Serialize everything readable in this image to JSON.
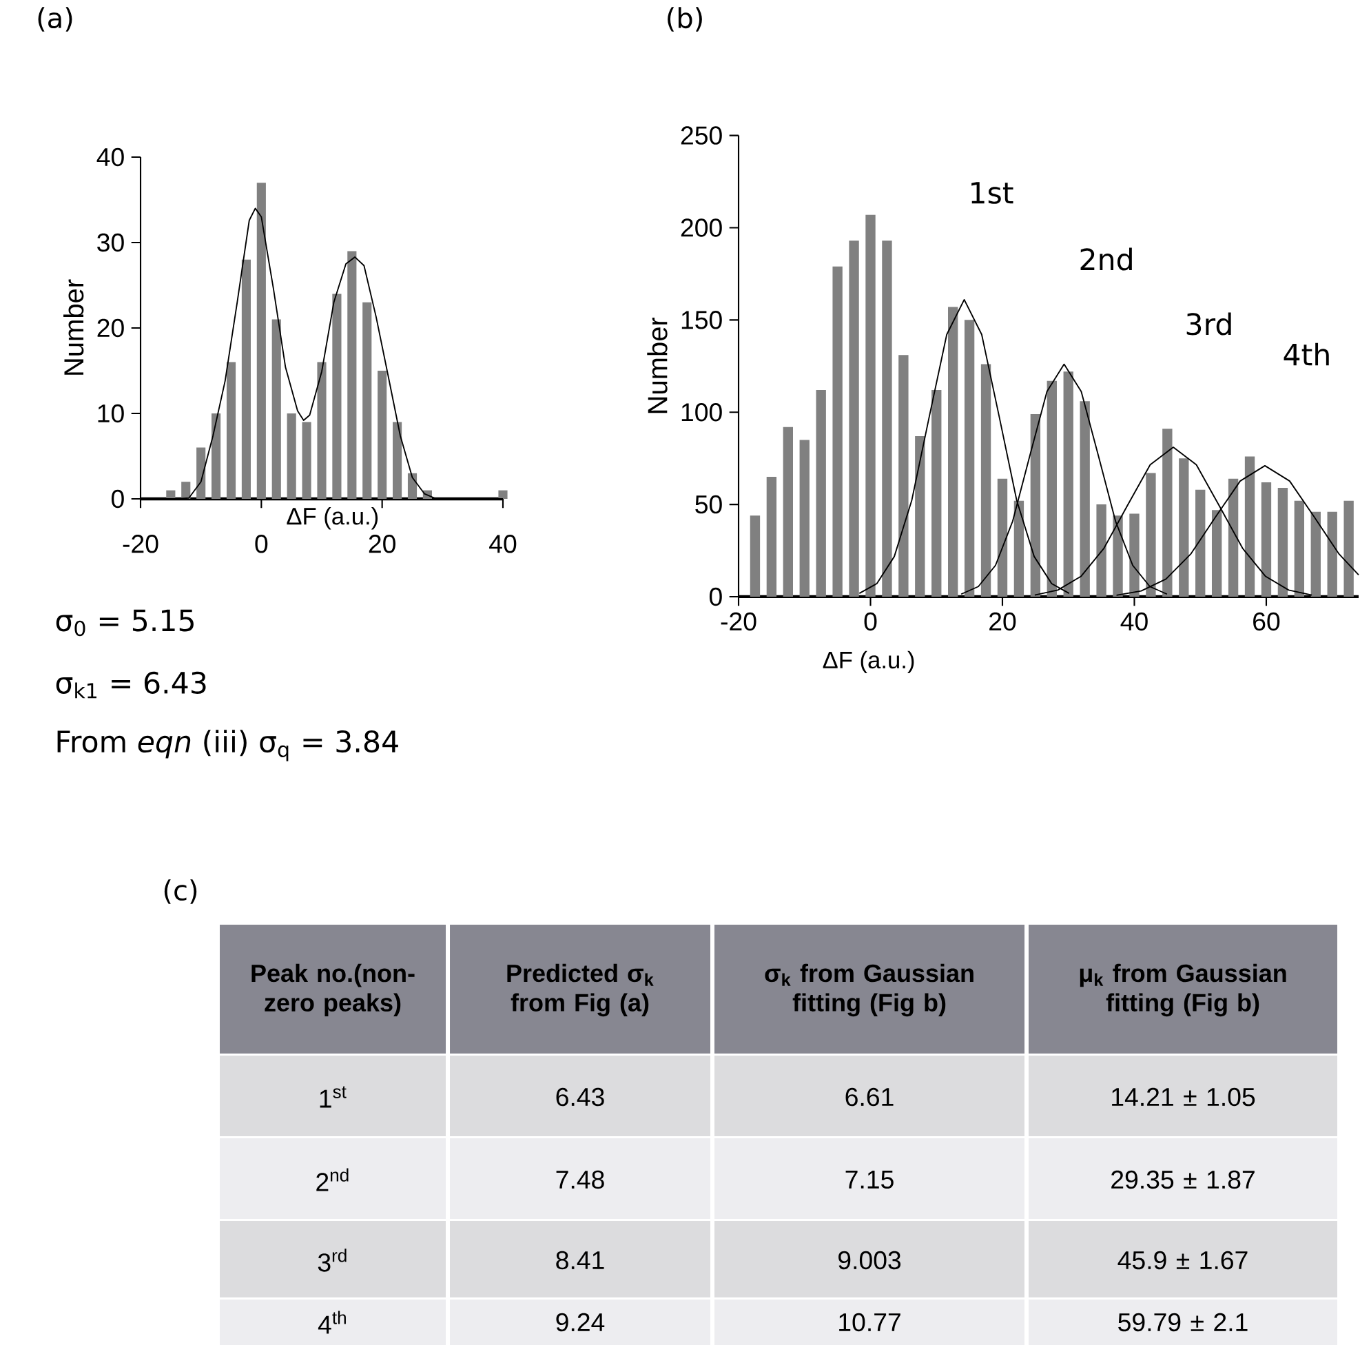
{
  "chart_data": [
    {
      "type": "histogram",
      "title": "(a)",
      "xlabel": "ΔF (a.u.)",
      "ylabel": "Number",
      "color": "#808080",
      "bins": [
        -16.25,
        -13.75,
        -11.25,
        -8.75,
        -6.25,
        -3.75,
        -1.25,
        1.25,
        3.75,
        6.25,
        8.75,
        11.25,
        13.75,
        16.25,
        18.75,
        21.25,
        23.75,
        26.25,
        28.75,
        31.25,
        33.75,
        36.25,
        38.75,
        41.25
      ],
      "values": [
        1,
        2,
        6,
        10,
        16,
        28,
        37,
        21,
        10,
        9,
        16,
        24,
        29,
        23,
        15,
        9,
        3,
        1,
        0,
        0,
        0,
        0,
        1
      ],
      "series": [
        {
          "type": "line",
          "color": "#000000",
          "x": [
            -20,
            -14,
            -12,
            -10,
            -8,
            -6,
            -4,
            -2,
            -1,
            0,
            2,
            4,
            6,
            7,
            8,
            10,
            12,
            14,
            15.5,
            17,
            19,
            21,
            23,
            25,
            27,
            29,
            40
          ],
          "values": [
            0,
            0,
            0.1,
            2,
            7.4,
            13.8,
            23,
            32.6,
            34,
            33,
            24.6,
            15.4,
            10.3,
            9.2,
            9.8,
            14.9,
            23,
            27.5,
            28.3,
            27.3,
            21.3,
            14.4,
            7.4,
            2.5,
            0.6,
            0,
            0
          ]
        }
      ],
      "xlim": [
        -20,
        40
      ],
      "ylim": [
        0,
        40
      ],
      "xticks": [
        -20,
        0,
        20,
        40
      ],
      "yticks": [
        0,
        10,
        20,
        30,
        40
      ],
      "annotations": [
        "σ$_{0}$ = 5.15",
        "σ$_{k1}$ = 6.43",
        "From *eqn* (iii) σ$_{q}$ = 3.84"
      ]
    },
    {
      "type": "histogram",
      "title": "(b)",
      "xlabel": "ΔF (a.u.)",
      "ylabel": "Number",
      "color": "#808080",
      "bins": [
        -18.75,
        -16.25,
        -13.75,
        -11.25,
        -8.75,
        -6.25,
        -3.75,
        -1.25,
        1.25,
        3.75,
        6.25,
        8.75,
        11.25,
        13.75,
        16.25,
        18.75,
        21.25,
        23.75,
        26.25,
        28.75,
        31.25,
        33.75,
        36.25,
        38.75,
        41.25,
        43.75,
        46.25,
        48.75,
        51.25,
        53.75,
        56.25,
        58.75,
        61.25,
        63.75,
        66.25,
        68.75,
        71.25,
        73.75
      ],
      "values": [
        44,
        65,
        92,
        85,
        112,
        179,
        193,
        207,
        193,
        131,
        87,
        112,
        157,
        150,
        126,
        64,
        52,
        99,
        117,
        122,
        106,
        50,
        44,
        45,
        67,
        91,
        75,
        58,
        47,
        64,
        76,
        62,
        59,
        52,
        46,
        46,
        52
      ],
      "series": [
        {
          "type": "line",
          "color": "#000000",
          "x": [
            -1.69,
            0.96,
            3.61,
            6.26,
            8.91,
            11.56,
            14.21,
            16.86,
            19.51,
            22.16,
            24.81,
            27.46,
            30.11
          ],
          "values": [
            1.8,
            7.1,
            21.8,
            52.3,
            97.6,
            142.1,
            161,
            142.1,
            97.6,
            52.3,
            21.8,
            7.1,
            1.8
          ]
        },
        {
          "type": "line",
          "color": "#000000",
          "x": [
            13.75,
            16.35,
            18.95,
            21.55,
            24.15,
            26.75,
            29.35,
            31.95,
            34.55,
            37.15,
            39.75,
            42.35,
            44.95
          ],
          "values": [
            1.4,
            5.5,
            17.0,
            40.9,
            76.4,
            111.2,
            126,
            111.2,
            76.4,
            40.9,
            17.0,
            5.5,
            1.4
          ]
        },
        {
          "type": "line",
          "color": "#000000",
          "x": [
            24.9,
            28.4,
            31.9,
            35.4,
            38.9,
            42.4,
            45.9,
            49.4,
            52.9,
            56.4,
            59.9,
            63.4,
            66.9
          ],
          "values": [
            0.9,
            3.6,
            11.0,
            26.3,
            49.1,
            71.5,
            81,
            71.5,
            49.1,
            26.3,
            11.0,
            3.6,
            0.9
          ]
        },
        {
          "type": "line",
          "color": "#000000",
          "x": [
            37.29,
            41.04,
            44.79,
            48.54,
            52.29,
            56.04,
            59.79,
            63.54,
            67.29,
            71.04,
            74
          ],
          "values": [
            0.8,
            3.1,
            9.6,
            23.1,
            43.1,
            62.7,
            71,
            62.7,
            43.1,
            23.1,
            11.8
          ]
        }
      ],
      "xlim": [
        -20,
        74
      ],
      "ylim": [
        0,
        250
      ],
      "xticks": [
        -20,
        0,
        20,
        40,
        60
      ],
      "yticks": [
        0,
        50,
        100,
        150,
        200,
        250
      ],
      "annotations": [
        "1st",
        "2nd",
        "3rd",
        "4th"
      ]
    },
    {
      "type": "other",
      "title": "(c)",
      "annotations": [
        "Peak no.(non-zero peaks)",
        "Predicted σ$_{k}$ from Fig (a)",
        "σ$_{k}$ from Gaussian fitting (Fig b)",
        "μ$_{k}$ from Gaussian fitting (Fig b)",
        "1$^{st}$",
        "6.43",
        "6.61",
        "14.21 ± 1.05",
        "2$^{nd}$",
        "7.48",
        "7.15",
        "29.35 ± 1.87",
        "3$^{rd}$",
        "8.41",
        "9.003",
        "45.9 ± 1.67",
        "4$^{th}$",
        "9.24",
        "10.77",
        "59.79 ± 2.1"
      ]
    }
  ]
}
